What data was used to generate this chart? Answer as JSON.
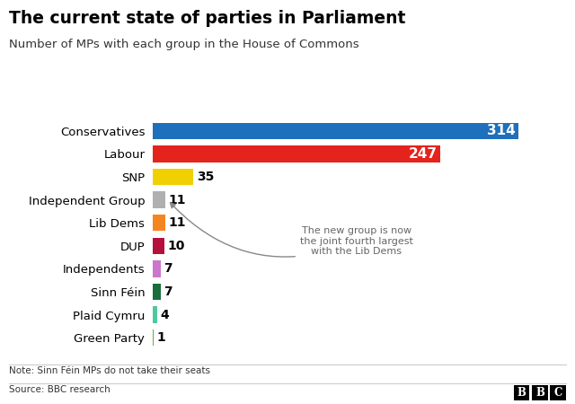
{
  "title": "The current state of parties in Parliament",
  "subtitle": "Number of MPs with each group in the House of Commons",
  "parties": [
    "Conservatives",
    "Labour",
    "SNP",
    "Independent Group",
    "Lib Dems",
    "DUP",
    "Independents",
    "Sinn Féin",
    "Plaid Cymru",
    "Green Party"
  ],
  "values": [
    314,
    247,
    35,
    11,
    11,
    10,
    7,
    7,
    4,
    1
  ],
  "colors": [
    "#1e6fbc",
    "#e4241c",
    "#f0d000",
    "#b0b0b0",
    "#f5851f",
    "#b5103c",
    "#cc77cc",
    "#1a6e3c",
    "#4ec8a0",
    "#6ab023"
  ],
  "note": "Note: Sinn Féin MPs do not take their seats",
  "source": "Source: BBC research",
  "annotation_text": "The new group is now\nthe joint fourth largest\nwith the Lib Dems",
  "bg_color": "#ffffff",
  "label_fontsize": 9.5,
  "value_label_large_fontsize": 11,
  "value_label_small_fontsize": 10,
  "inside_threshold": 100,
  "xlim": [
    0,
    345
  ]
}
